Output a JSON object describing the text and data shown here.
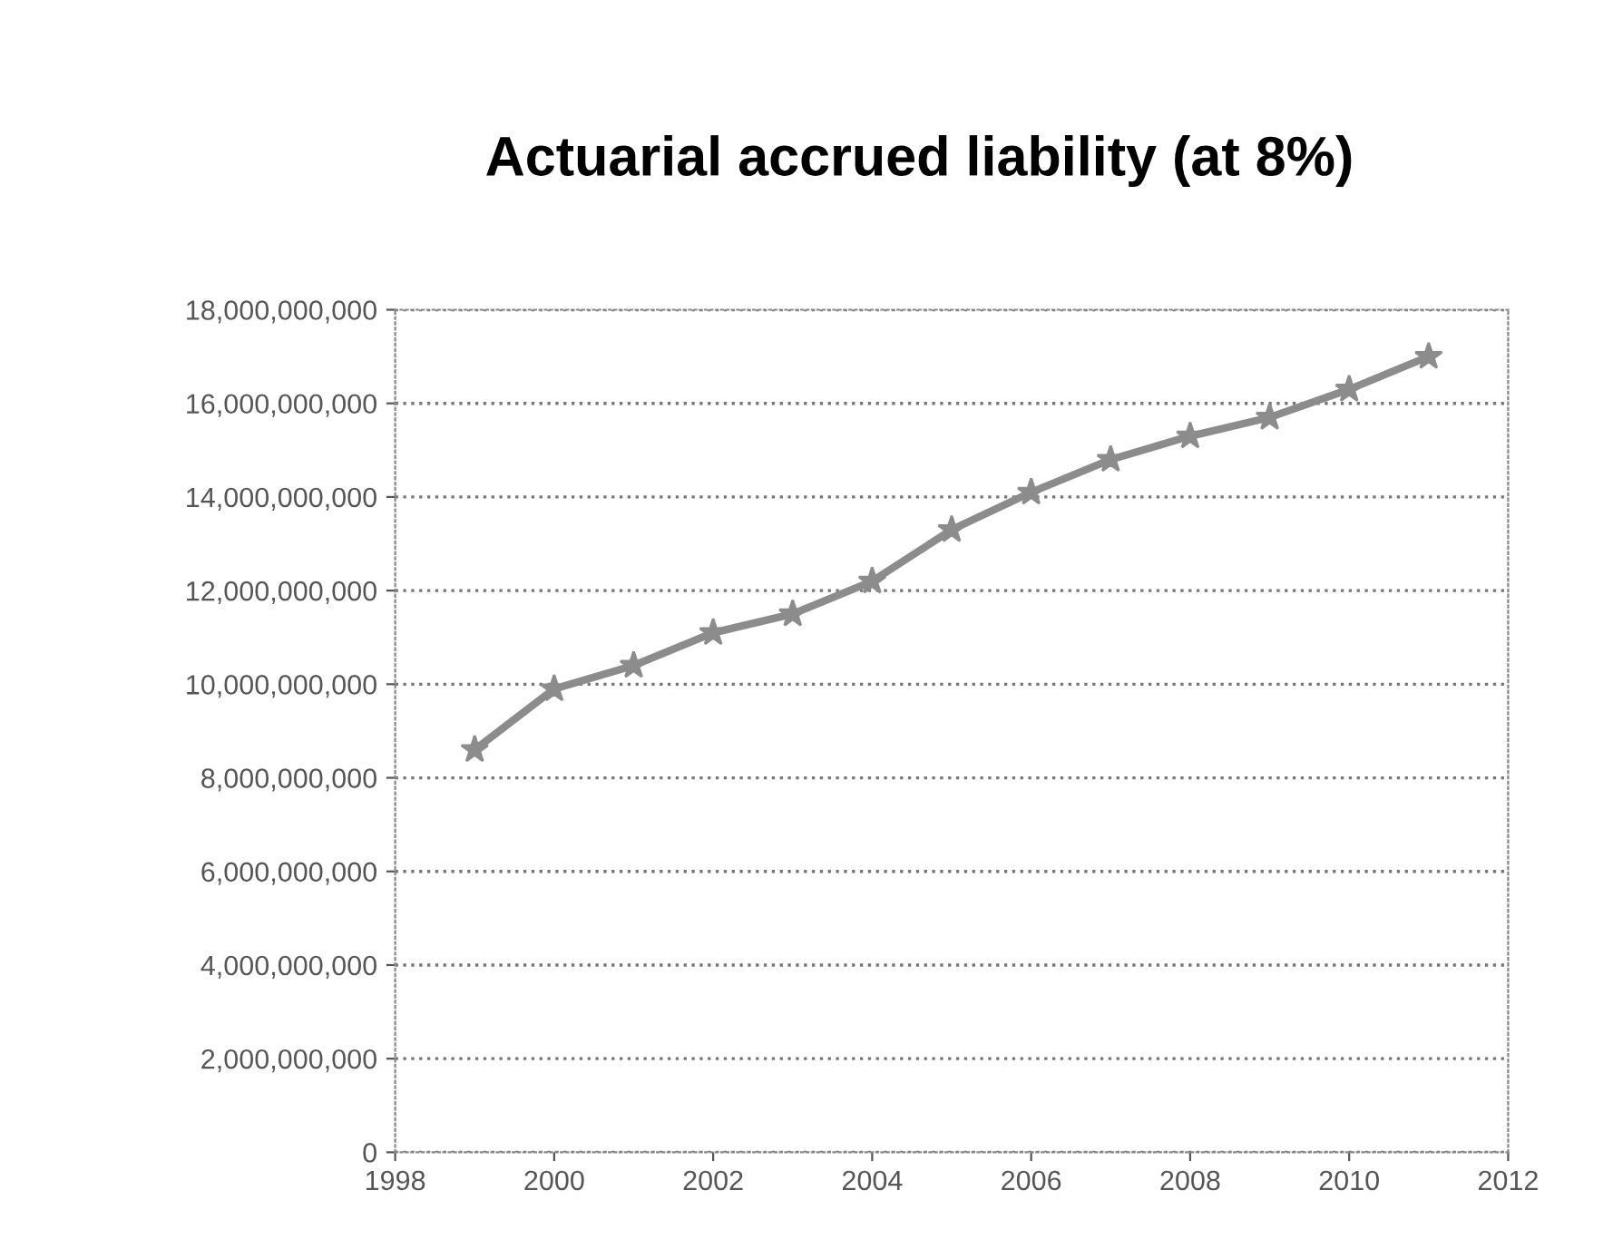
{
  "chart_data": {
    "type": "line",
    "title": "Actuarial accrued liability (at 8%)",
    "x": [
      1999,
      2000,
      2001,
      2002,
      2003,
      2004,
      2005,
      2006,
      2007,
      2008,
      2009,
      2010,
      2011
    ],
    "series": [
      {
        "color": "#8c8c8c",
        "values": [
          8600000000,
          9900000000,
          10400000000,
          11100000000,
          11500000000,
          12200000000,
          13300000000,
          14100000000,
          14800000000,
          15300000000,
          15700000000,
          16300000000,
          17000000000
        ]
      }
    ],
    "xlim": [
      1998,
      2012
    ],
    "xticks": [
      1998,
      2000,
      2002,
      2004,
      2006,
      2008,
      2010,
      2012
    ],
    "ylim": [
      0,
      18000000000
    ],
    "yticks": [
      {
        "value": 0,
        "label": "0"
      },
      {
        "value": 2000000000,
        "label": "2,000,000,000"
      },
      {
        "value": 4000000000,
        "label": "4,000,000,000"
      },
      {
        "value": 6000000000,
        "label": "6,000,000,000"
      },
      {
        "value": 8000000000,
        "label": "8,000,000,000"
      },
      {
        "value": 10000000000,
        "label": "10,000,000,000"
      },
      {
        "value": 12000000000,
        "label": "12,000,000,000"
      },
      {
        "value": 14000000000,
        "label": "14,000,000,000"
      },
      {
        "value": 16000000000,
        "label": "16,000,000,000"
      },
      {
        "value": 18000000000,
        "label": "18,000,000,000"
      }
    ],
    "grid": "y",
    "marker": "star",
    "line_style": "solid"
  }
}
